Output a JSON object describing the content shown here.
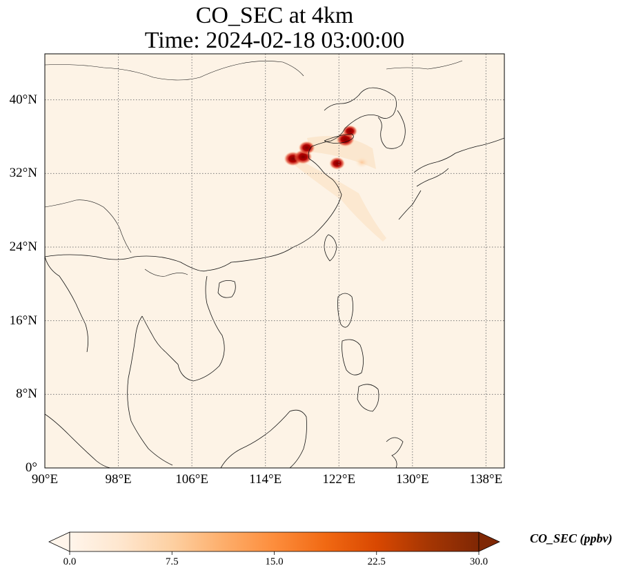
{
  "title": {
    "line1": "CO_SEC at 4km",
    "line2": "Time: 2024-02-18 03:00:00"
  },
  "map": {
    "region": "East & Southeast Asia",
    "lon_range": [
      90,
      140
    ],
    "lat_range": [
      0,
      45
    ],
    "lat_ticks": [
      {
        "value": 40,
        "label": "40°N"
      },
      {
        "value": 32,
        "label": "32°N"
      },
      {
        "value": 24,
        "label": "24°N"
      },
      {
        "value": 16,
        "label": "16°N"
      },
      {
        "value": 8,
        "label": "8°N"
      },
      {
        "value": 0,
        "label": "0°"
      }
    ],
    "lon_ticks": [
      {
        "value": 90,
        "label": "90°E"
      },
      {
        "value": 98,
        "label": "98°E"
      },
      {
        "value": 106,
        "label": "106°E"
      },
      {
        "value": 114,
        "label": "114°E"
      },
      {
        "value": 122,
        "label": "122°E"
      },
      {
        "value": 130,
        "label": "130°E"
      },
      {
        "value": 138,
        "label": "138°E"
      }
    ],
    "gridlines": "dotted",
    "field_background": "#fdf3e6",
    "hotspots": [
      {
        "lon": 117.0,
        "lat": 33.6,
        "value": 30.0
      },
      {
        "lon": 118.1,
        "lat": 33.8,
        "value": 30.0
      },
      {
        "lon": 118.5,
        "lat": 34.8,
        "value": 28.0
      },
      {
        "lon": 121.8,
        "lat": 33.1,
        "value": 27.0
      },
      {
        "lon": 122.7,
        "lat": 35.7,
        "value": 30.0
      },
      {
        "lon": 123.2,
        "lat": 36.6,
        "value": 26.0
      },
      {
        "lon": 124.5,
        "lat": 33.2,
        "value": 6.0
      }
    ]
  },
  "colorbar": {
    "label": "CO_SEC (ppbv)",
    "min": 0.0,
    "max": 30.0,
    "extend": "both",
    "ticks": [
      "0.0",
      "7.5",
      "15.0",
      "22.5",
      "30.0"
    ],
    "colors": [
      "#fff5eb",
      "#fee6ce",
      "#fdd0a2",
      "#fdae6b",
      "#fd8d3c",
      "#f16913",
      "#d94801",
      "#a63603",
      "#7f2704"
    ]
  }
}
